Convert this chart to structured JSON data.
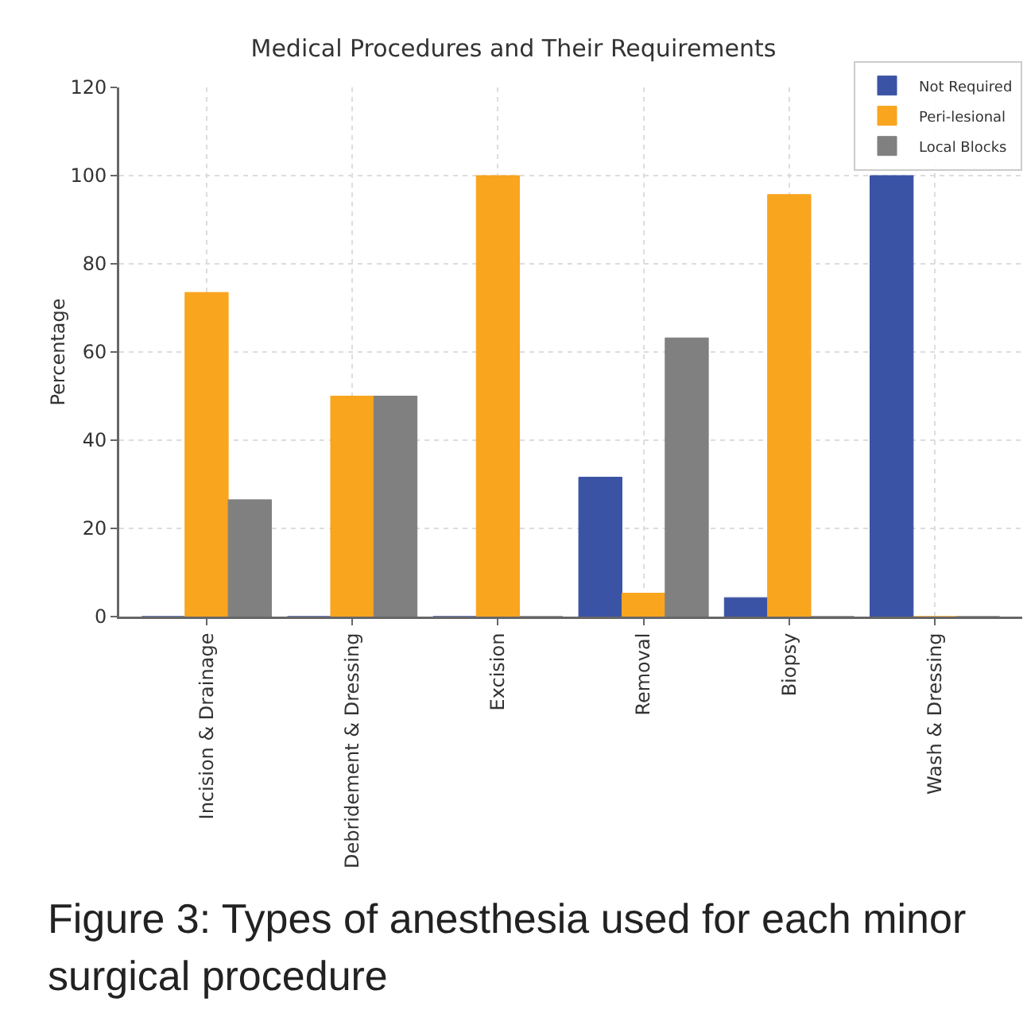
{
  "chart_data": {
    "type": "bar",
    "title": "Medical Procedures and Their Requirements",
    "ylabel": "Percentage",
    "categories": [
      "Incision & Drainage",
      "Debridement & Dressing",
      "Excision",
      "Removal",
      "Biopsy",
      "Wash & Dressing"
    ],
    "series": [
      {
        "name": "Not Required",
        "color": "#3a53a4",
        "values": [
          0,
          0,
          0,
          31.6,
          4.3,
          100
        ]
      },
      {
        "name": "Peri-lesional",
        "color": "#f9a51e",
        "values": [
          73.5,
          50,
          100,
          5.3,
          95.7,
          0
        ]
      },
      {
        "name": "Local Blocks",
        "color": "#808080",
        "values": [
          26.5,
          50,
          0,
          63.2,
          0,
          0
        ]
      }
    ],
    "ylim": [
      0,
      120
    ],
    "yticks": [
      0,
      20,
      40,
      60,
      80,
      100,
      120
    ],
    "grid": true,
    "legend": "top right",
    "annotations": [
      "Figure 3: Types of anesthesia used for each minor surgical procedure"
    ]
  }
}
